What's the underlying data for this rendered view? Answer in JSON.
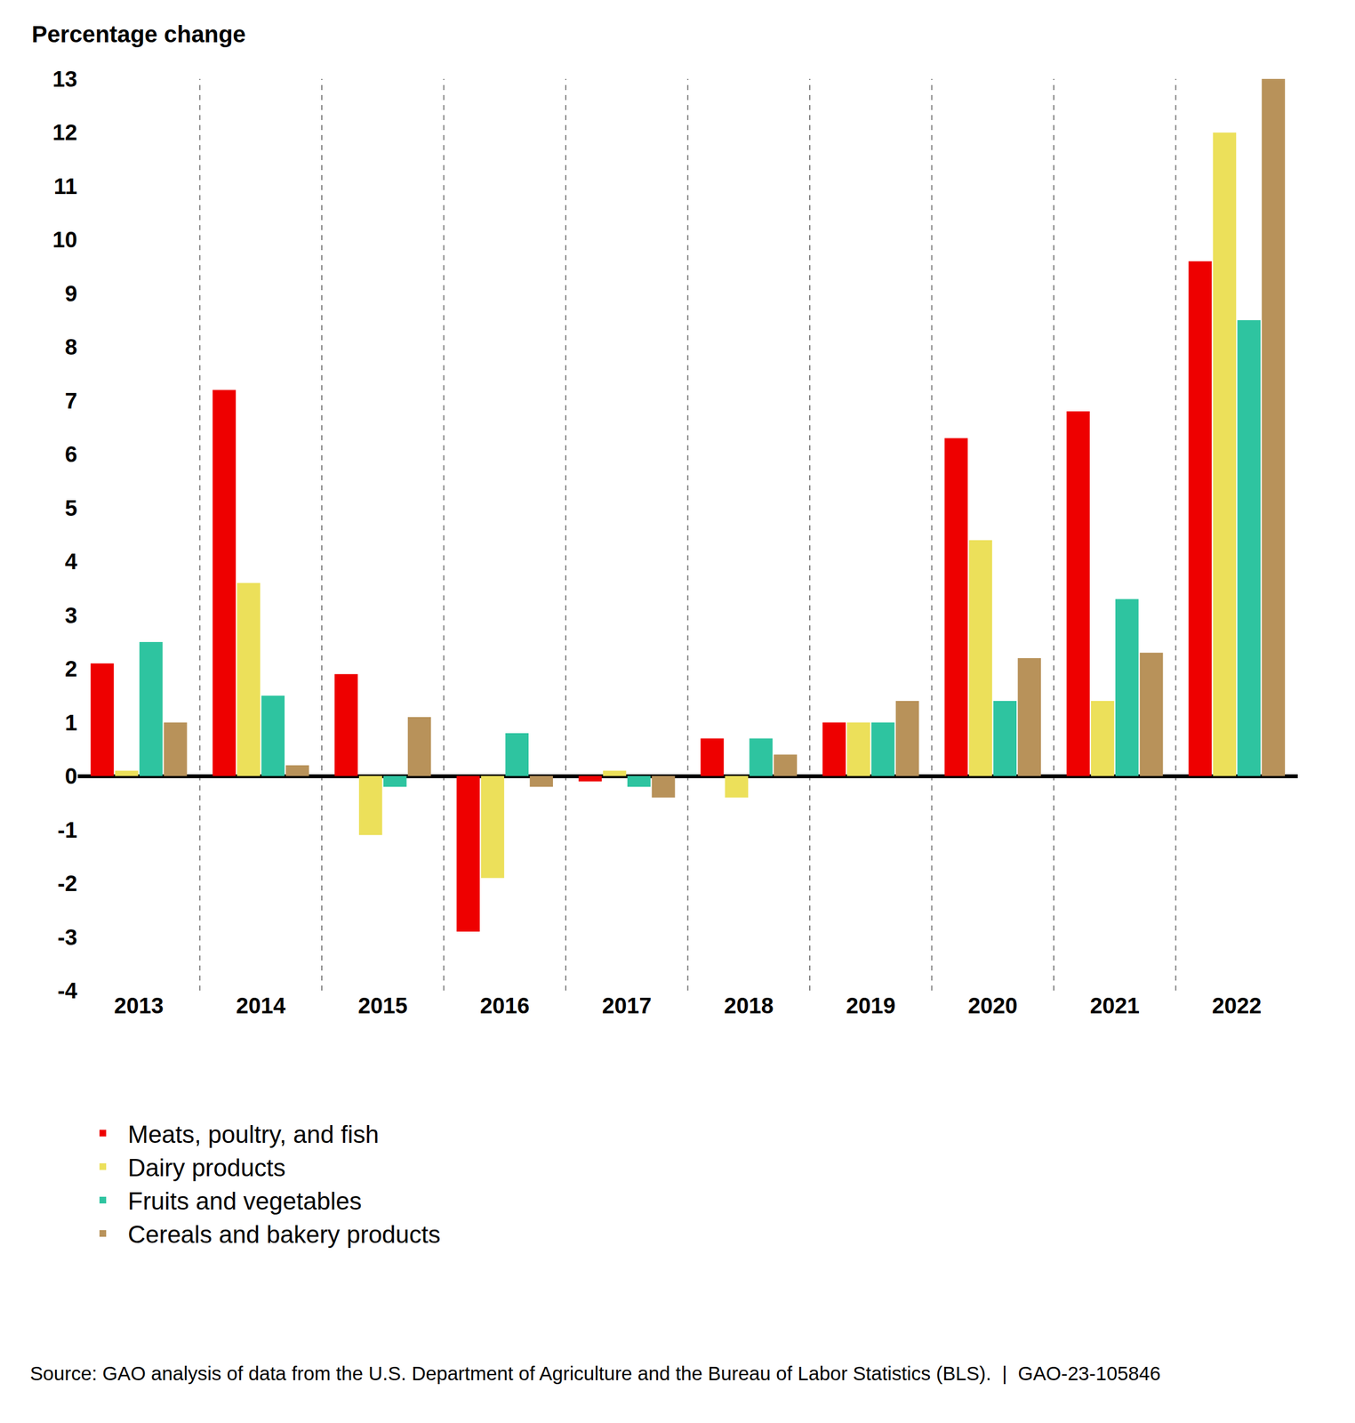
{
  "chart_data": {
    "type": "bar",
    "y_label": "Percentage change",
    "source": "Source: GAO analysis of data from the U.S. Department of Agriculture and the Bureau of Labor Statistics (BLS).  |  GAO-23-105846",
    "categories": [
      "2013",
      "2014",
      "2015",
      "2016",
      "2017",
      "2018",
      "2019",
      "2020",
      "2021",
      "2022"
    ],
    "series": [
      {
        "name": "Meats, poultry, and fish",
        "color": "#ee0000",
        "values": [
          2.1,
          7.2,
          1.9,
          -2.9,
          -0.1,
          0.7,
          1.0,
          6.3,
          6.8,
          9.6
        ]
      },
      {
        "name": "Dairy products",
        "color": "#ece05a",
        "values": [
          0.1,
          3.6,
          -1.1,
          -1.9,
          0.1,
          -0.4,
          1.0,
          4.4,
          1.4,
          12.0
        ]
      },
      {
        "name": "Fruits and vegetables",
        "color": "#2ec4a0",
        "values": [
          2.5,
          1.5,
          -0.2,
          0.8,
          -0.2,
          0.7,
          1.0,
          1.4,
          3.3,
          8.5
        ]
      },
      {
        "name": "Cereals and bakery products",
        "color": "#b8925a",
        "values": [
          1.0,
          0.2,
          1.1,
          -0.2,
          -0.4,
          0.4,
          1.4,
          2.2,
          2.3,
          13.0
        ]
      }
    ],
    "ylim": [
      -4,
      13
    ],
    "yticks": [
      -4,
      -3,
      -2,
      -1,
      0,
      1,
      2,
      3,
      4,
      5,
      6,
      7,
      8,
      9,
      10,
      11,
      12,
      13
    ],
    "grid": false,
    "legend": "bottom"
  }
}
